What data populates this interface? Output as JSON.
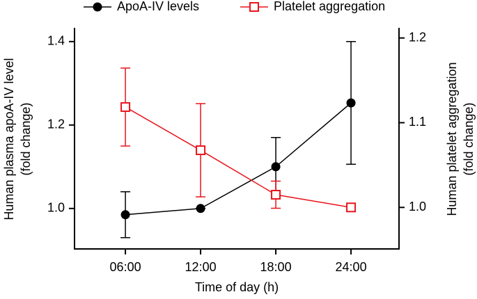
{
  "chart_data": {
    "type": "line",
    "xlabel": "Time of day (h)",
    "ylabel": [
      "Human plasma apoA-IV level",
      "(fold change)"
    ],
    "y2label": [
      "Human platelet aggregation",
      "(fold change)"
    ],
    "x": [
      6,
      12,
      18,
      24
    ],
    "xlim": [
      1.94,
      27.83
    ],
    "xticks": [
      {
        "value": 6,
        "label": "06:00"
      },
      {
        "value": 12,
        "label": "12:00"
      },
      {
        "value": 18,
        "label": "18:00"
      },
      {
        "value": 24,
        "label": "24:00"
      }
    ],
    "ylim": [
      0.903,
      1.433
    ],
    "yticks": [
      {
        "value": 1.0,
        "label": "1.0"
      },
      {
        "value": 1.2,
        "label": "1.2"
      },
      {
        "value": 1.4,
        "label": "1.4"
      }
    ],
    "y2lim": [
      0.951,
      1.212
    ],
    "y2ticks": [
      {
        "value": 1.0,
        "label": "1.0"
      },
      {
        "value": 1.1,
        "label": "1.1"
      },
      {
        "value": 1.2,
        "label": "1.2"
      }
    ],
    "series": [
      {
        "name": "ApoA-IV levels",
        "color": "#000000",
        "marker": "circle",
        "values": [
          0.985,
          1.0,
          1.1,
          1.253
        ],
        "errors": [
          0.055,
          0,
          0.07,
          0.147
        ]
      },
      {
        "name": "Platelet aggregation",
        "color": "#e8141b",
        "marker": "square",
        "axis": "y2",
        "values": [
          1.1185,
          1.0675,
          1.015,
          1.0
        ],
        "errors": [
          0.046,
          0.055,
          0.016,
          0
        ]
      }
    ]
  }
}
